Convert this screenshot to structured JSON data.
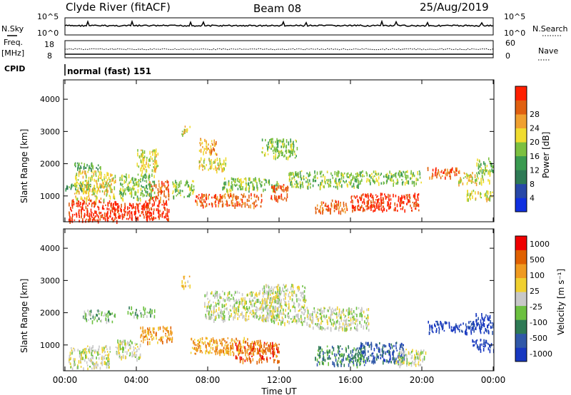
{
  "header": {
    "station": "Clyde River (fitACF)",
    "beam": "Beam 08",
    "date": "25/Aug/2019"
  },
  "panels": {
    "nsky_label": "N.Sky",
    "nsky_top": "10^5",
    "nsky_bottom": "10^0",
    "nsearch_label": "N.Search",
    "nsearch_top": "10^5",
    "nsearch_bottom": "10^0",
    "freq_label": "Freq.",
    "freq_unit": "[MHz]",
    "freq_top": "18",
    "freq_bottom": "8",
    "nave_label": "Nave",
    "nave_top": "60",
    "nave_bottom": "0",
    "cpid_label": "CPID",
    "cpid_value": "normal (fast) 151"
  },
  "chart_data": [
    {
      "type": "heatmap",
      "name": "power",
      "ylabel": "Slant Range [km]",
      "yticks": [
        "1000",
        "2000",
        "3000",
        "4000"
      ],
      "ylim": [
        200,
        4600
      ],
      "xlim": [
        0,
        24
      ],
      "colorbar": {
        "title": "Power [dB]",
        "ticks": [
          "4",
          "8",
          "12",
          "16",
          "20",
          "24",
          "28"
        ],
        "colors": [
          "#1030e0",
          "#2848a8",
          "#2e7a55",
          "#3a9a50",
          "#7cc040",
          "#f0dc30",
          "#f0a030",
          "#e06010",
          "#ff2000"
        ]
      },
      "blobs": [
        {
          "t0": 0.2,
          "t1": 3.0,
          "r0": 250,
          "r1": 900,
          "level": 8
        },
        {
          "t0": 0.0,
          "t1": 2.0,
          "r0": 1200,
          "r1": 1400,
          "level": 3
        },
        {
          "t0": 0.5,
          "t1": 2.8,
          "r0": 900,
          "r1": 1800,
          "level": 5
        },
        {
          "t0": 0.2,
          "t1": 2.0,
          "r0": 1850,
          "r1": 2050,
          "level": 3
        },
        {
          "t0": 2.5,
          "t1": 5.0,
          "r0": 300,
          "r1": 800,
          "level": 8
        },
        {
          "t0": 4.5,
          "t1": 5.8,
          "r0": 300,
          "r1": 900,
          "level": 8
        },
        {
          "t0": 4.7,
          "t1": 5.8,
          "r0": 900,
          "r1": 1500,
          "level": 7
        },
        {
          "t0": 3.0,
          "t1": 5.0,
          "r0": 900,
          "r1": 1700,
          "level": 4
        },
        {
          "t0": 4.0,
          "t1": 5.2,
          "r0": 1800,
          "r1": 2500,
          "level": 5
        },
        {
          "t0": 6.5,
          "t1": 7.0,
          "r0": 2900,
          "r1": 3200,
          "level": 5
        },
        {
          "t0": 6.0,
          "t1": 7.2,
          "r0": 1000,
          "r1": 1500,
          "level": 4
        },
        {
          "t0": 7.2,
          "t1": 11.0,
          "r0": 700,
          "r1": 1100,
          "level": 7
        },
        {
          "t0": 8.8,
          "t1": 12.0,
          "r0": 1200,
          "r1": 1600,
          "level": 4
        },
        {
          "t0": 7.5,
          "t1": 8.5,
          "r0": 2300,
          "r1": 2800,
          "level": 6
        },
        {
          "t0": 7.5,
          "t1": 9.0,
          "r0": 1800,
          "r1": 2200,
          "level": 5
        },
        {
          "t0": 11.0,
          "t1": 13.0,
          "r0": 2200,
          "r1": 2800,
          "level": 4
        },
        {
          "t0": 11.5,
          "t1": 12.5,
          "r0": 900,
          "r1": 1400,
          "level": 7
        },
        {
          "t0": 12.5,
          "t1": 16.5,
          "r0": 1300,
          "r1": 1800,
          "level": 4
        },
        {
          "t0": 14.0,
          "t1": 15.8,
          "r0": 500,
          "r1": 900,
          "level": 7
        },
        {
          "t0": 16.0,
          "t1": 19.8,
          "r0": 550,
          "r1": 1100,
          "level": 8
        },
        {
          "t0": 16.5,
          "t1": 20.0,
          "r0": 1400,
          "r1": 1800,
          "level": 4
        },
        {
          "t0": 20.3,
          "t1": 22.2,
          "r0": 1600,
          "r1": 1900,
          "level": 7
        },
        {
          "t0": 22.0,
          "t1": 23.8,
          "r0": 1400,
          "r1": 1750,
          "level": 5
        },
        {
          "t0": 23.0,
          "t1": 24.0,
          "r0": 1700,
          "r1": 2200,
          "level": 4
        },
        {
          "t0": 22.5,
          "t1": 24.0,
          "r0": 900,
          "r1": 1200,
          "level": 5
        }
      ]
    },
    {
      "type": "heatmap",
      "name": "velocity",
      "ylabel": "Slant Range [km]",
      "yticks": [
        "1000",
        "2000",
        "3000",
        "4000"
      ],
      "ylim": [
        200,
        4600
      ],
      "xlim": [
        0,
        24
      ],
      "xticks": [
        "00:00",
        "04:00",
        "08:00",
        "12:00",
        "16:00",
        "20:00",
        "00:00"
      ],
      "xlabel": "Time UT",
      "colorbar": {
        "title": "Velocity [m s⁻¹]",
        "ticks": [
          "1000",
          "500",
          "100",
          "25",
          "-25",
          "-100",
          "-500",
          "-1000"
        ],
        "colors": [
          "#1838c0",
          "#3058a8",
          "#2e7a55",
          "#6cc040",
          "#c8c8c8",
          "#f0d030",
          "#f09a20",
          "#e06000",
          "#f00000"
        ]
      },
      "blobs": [
        {
          "t0": 0.2,
          "t1": 2.5,
          "r0": 300,
          "r1": 1000,
          "level": 4
        },
        {
          "t0": 1.0,
          "t1": 2.8,
          "r0": 1750,
          "r1": 2100,
          "level": 3
        },
        {
          "t0": 2.8,
          "t1": 4.2,
          "r0": 600,
          "r1": 1200,
          "level": 4
        },
        {
          "t0": 4.2,
          "t1": 6.0,
          "r0": 1100,
          "r1": 1600,
          "level": 6
        },
        {
          "t0": 3.5,
          "t1": 5.0,
          "r0": 1900,
          "r1": 2200,
          "level": 3
        },
        {
          "t0": 6.5,
          "t1": 7.0,
          "r0": 2800,
          "r1": 3150,
          "level": 5
        },
        {
          "t0": 7.0,
          "t1": 11.0,
          "r0": 750,
          "r1": 1250,
          "level": 6
        },
        {
          "t0": 9.5,
          "t1": 12.0,
          "r0": 500,
          "r1": 1100,
          "level": 7
        },
        {
          "t0": 7.8,
          "t1": 12.0,
          "r0": 1800,
          "r1": 2700,
          "level": 4
        },
        {
          "t0": 11.0,
          "t1": 13.5,
          "r0": 1700,
          "r1": 2900,
          "level": 4
        },
        {
          "t0": 13.5,
          "t1": 17.0,
          "r0": 1500,
          "r1": 2200,
          "level": 4
        },
        {
          "t0": 14.0,
          "t1": 16.8,
          "r0": 400,
          "r1": 1000,
          "level": 2
        },
        {
          "t0": 16.5,
          "t1": 19.0,
          "r0": 500,
          "r1": 1100,
          "level": 1
        },
        {
          "t0": 18.5,
          "t1": 20.2,
          "r0": 400,
          "r1": 900,
          "level": 4
        },
        {
          "t0": 20.3,
          "t1": 23.0,
          "r0": 1400,
          "r1": 1750,
          "level": 0
        },
        {
          "t0": 23.0,
          "t1": 24.0,
          "r0": 1400,
          "r1": 2000,
          "level": 0
        },
        {
          "t0": 22.8,
          "t1": 24.0,
          "r0": 850,
          "r1": 1200,
          "level": 0
        }
      ]
    }
  ]
}
